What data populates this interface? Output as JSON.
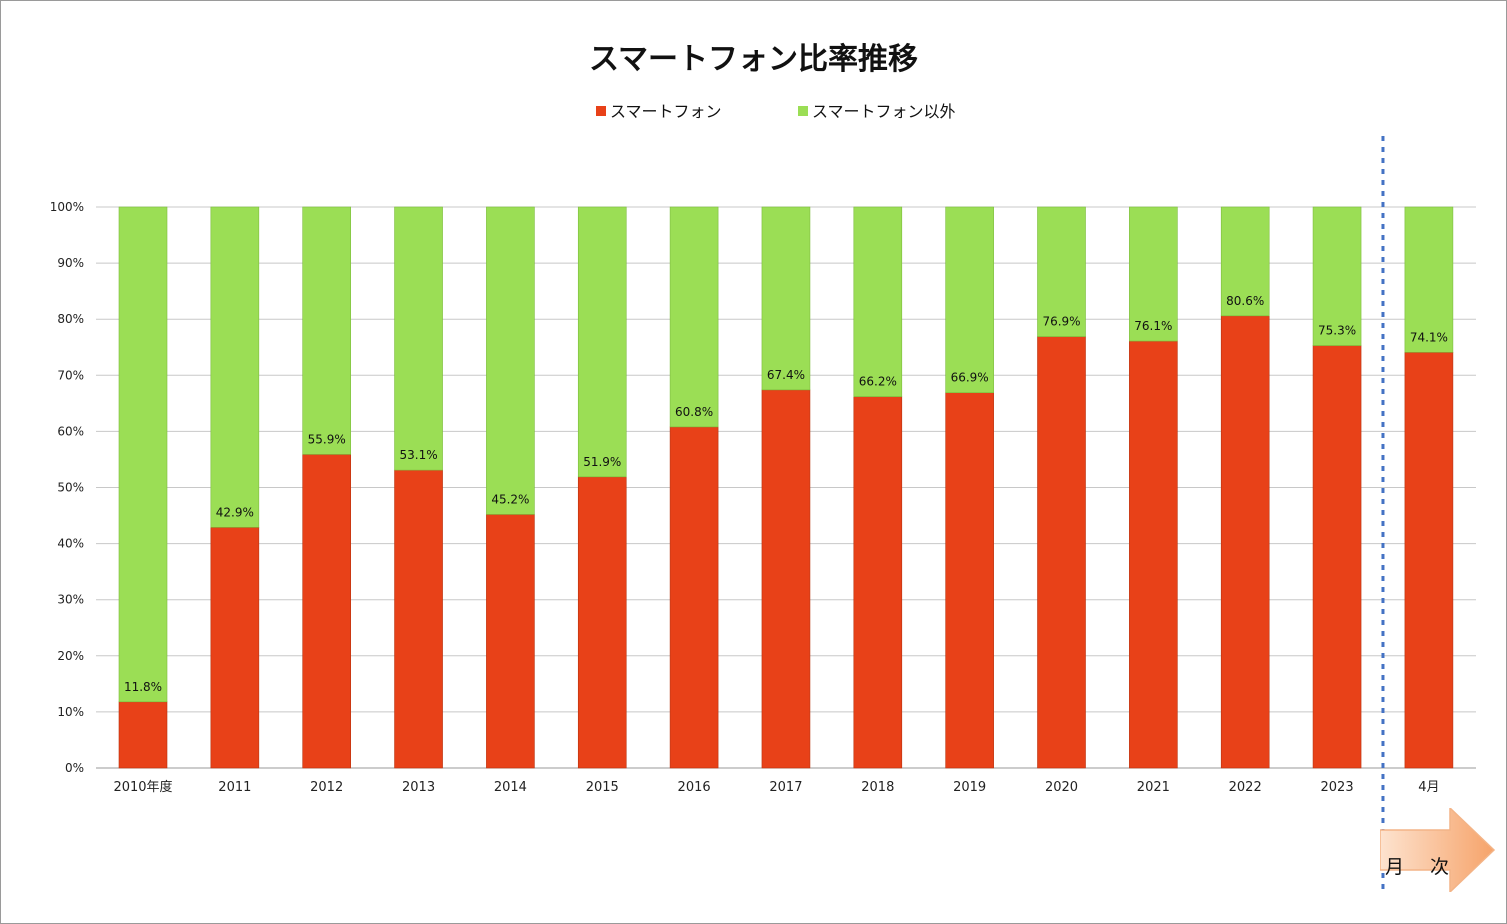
{
  "chart_data": {
    "type": "bar",
    "stacked": true,
    "title": "スマートフォン比率推移",
    "categories": [
      "2010年度",
      "2011",
      "2012",
      "2013",
      "2014",
      "2015",
      "2016",
      "2017",
      "2018",
      "2019",
      "2020",
      "2021",
      "2022",
      "2023",
      "4月"
    ],
    "series": [
      {
        "name": "スマートフォン",
        "color": "#e84118",
        "values": [
          11.8,
          42.9,
          55.9,
          53.1,
          45.2,
          51.9,
          60.8,
          67.4,
          66.2,
          66.9,
          76.9,
          76.1,
          80.6,
          75.3,
          74.1
        ]
      },
      {
        "name": "スマートフォン以外",
        "color": "#9bde55",
        "values": [
          88.2,
          57.1,
          44.1,
          46.9,
          54.8,
          48.1,
          39.2,
          32.6,
          33.8,
          33.1,
          23.1,
          23.9,
          19.4,
          24.7,
          25.9
        ]
      }
    ],
    "data_labels": [
      "11.8%",
      "42.9%",
      "55.9%",
      "53.1%",
      "45.2%",
      "51.9%",
      "60.8%",
      "67.4%",
      "66.2%",
      "66.9%",
      "76.9%",
      "76.1%",
      "80.6%",
      "75.3%",
      "74.1%"
    ],
    "y_ticks": [
      "0%",
      "10%",
      "20%",
      "30%",
      "40%",
      "50%",
      "60%",
      "70%",
      "80%",
      "90%",
      "100%"
    ],
    "ylim": [
      0,
      100
    ],
    "grid": true,
    "legend_position": "top",
    "annotation": "月 次"
  }
}
